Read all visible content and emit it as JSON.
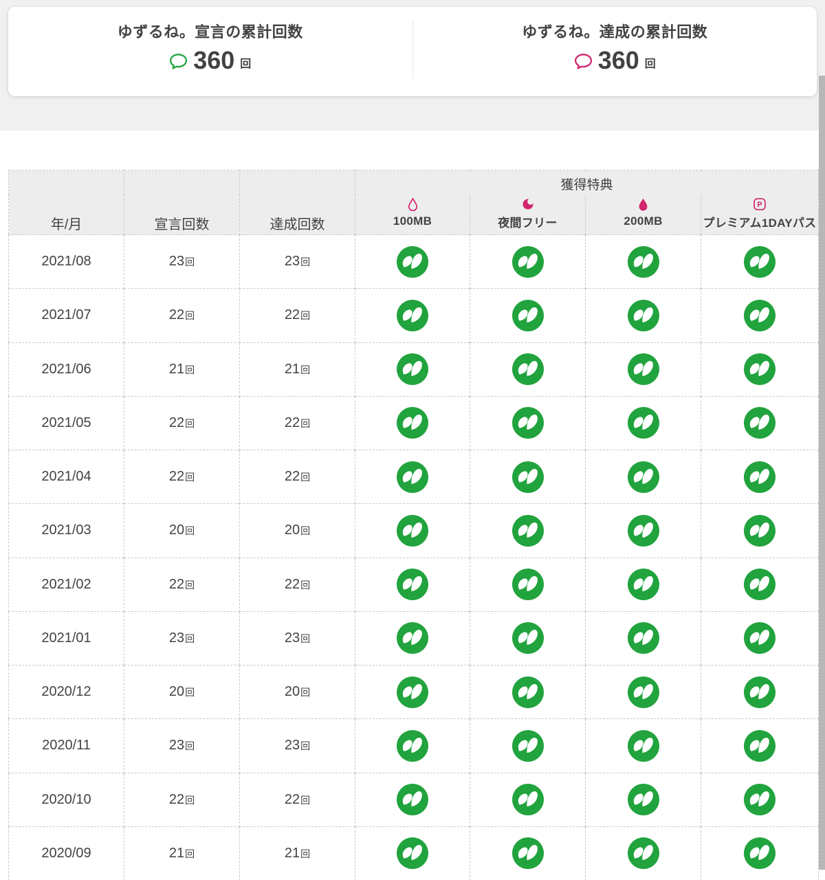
{
  "colors": {
    "green": "#21a33d",
    "pink": "#d2256d",
    "header_bg": "#ededed"
  },
  "summary": {
    "declare": {
      "title": "ゆずるね。宣言の累計回数",
      "value": "360",
      "unit": "回"
    },
    "achieve": {
      "title": "ゆずるね。達成の累計回数",
      "value": "360",
      "unit": "回"
    }
  },
  "table": {
    "headers": {
      "month": "年/月",
      "declared": "宣言回数",
      "achieved": "達成回数",
      "rewards_group": "獲得特典"
    },
    "reward_columns": [
      {
        "icon": "droplet-outline-icon",
        "label": "100MB"
      },
      {
        "icon": "moon-icon",
        "label": "夜間フリー"
      },
      {
        "icon": "droplet-filled-icon",
        "label": "200MB"
      },
      {
        "icon": "premium-pass-icon",
        "label": "プレミアム1DAYパス"
      }
    ],
    "count_unit": "回",
    "achieved_icon": "leaf-icon",
    "rows": [
      {
        "month": "2021/08",
        "declared": "23",
        "achieved": "23",
        "rewards": [
          true,
          true,
          true,
          true
        ]
      },
      {
        "month": "2021/07",
        "declared": "22",
        "achieved": "22",
        "rewards": [
          true,
          true,
          true,
          true
        ]
      },
      {
        "month": "2021/06",
        "declared": "21",
        "achieved": "21",
        "rewards": [
          true,
          true,
          true,
          true
        ]
      },
      {
        "month": "2021/05",
        "declared": "22",
        "achieved": "22",
        "rewards": [
          true,
          true,
          true,
          true
        ]
      },
      {
        "month": "2021/04",
        "declared": "22",
        "achieved": "22",
        "rewards": [
          true,
          true,
          true,
          true
        ]
      },
      {
        "month": "2021/03",
        "declared": "20",
        "achieved": "20",
        "rewards": [
          true,
          true,
          true,
          true
        ]
      },
      {
        "month": "2021/02",
        "declared": "22",
        "achieved": "22",
        "rewards": [
          true,
          true,
          true,
          true
        ]
      },
      {
        "month": "2021/01",
        "declared": "23",
        "achieved": "23",
        "rewards": [
          true,
          true,
          true,
          true
        ]
      },
      {
        "month": "2020/12",
        "declared": "20",
        "achieved": "20",
        "rewards": [
          true,
          true,
          true,
          true
        ]
      },
      {
        "month": "2020/11",
        "declared": "23",
        "achieved": "23",
        "rewards": [
          true,
          true,
          true,
          true
        ]
      },
      {
        "month": "2020/10",
        "declared": "22",
        "achieved": "22",
        "rewards": [
          true,
          true,
          true,
          true
        ]
      },
      {
        "month": "2020/09",
        "declared": "21",
        "achieved": "21",
        "rewards": [
          true,
          true,
          true,
          true
        ]
      }
    ]
  }
}
